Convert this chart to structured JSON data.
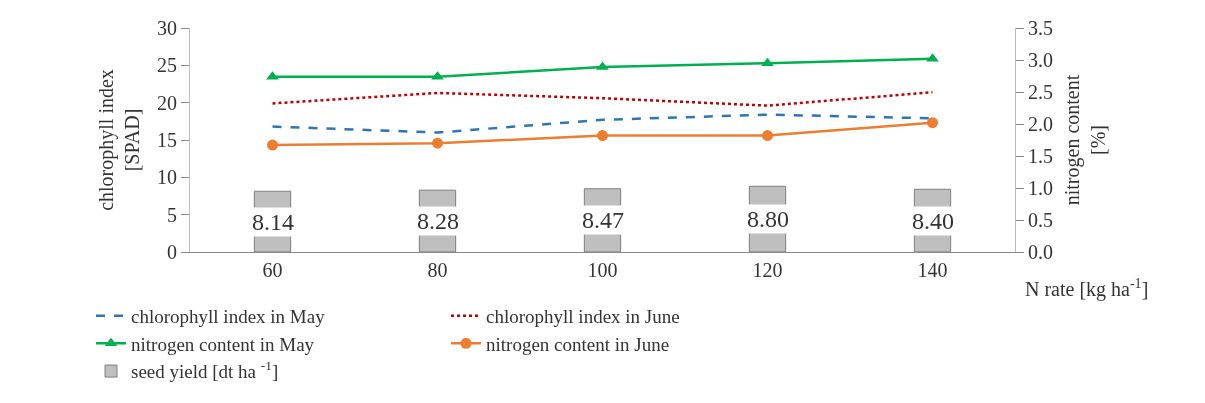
{
  "chart_data": {
    "type": "line",
    "xlabel": "N rate [kg ha$^{-1}$]",
    "ylabel": "chlorophyll index [SPAD]",
    "y2label": "nitrogen content [%]",
    "categories": [
      "60",
      "80",
      "100",
      "120",
      "140"
    ],
    "ylim": [
      0,
      30
    ],
    "yticks": [
      0,
      5,
      10,
      15,
      20,
      25,
      30
    ],
    "y2lim": [
      0,
      3.5
    ],
    "y2ticks": [
      {
        "value": 0,
        "label": "0.0"
      },
      0.5,
      {
        "value": 1,
        "label": "1.0"
      },
      1.5,
      {
        "value": 2,
        "label": "2.0"
      },
      2.5,
      {
        "value": 3,
        "label": "3.0"
      },
      3.5
    ],
    "grid": false,
    "legend": "bottom",
    "series": [
      {
        "name": "seed yield [dt ha $^{-1}$]",
        "type": "bar",
        "color": "#bfbfbf",
        "values": [
          8.14,
          8.28,
          8.47,
          8.8,
          8.4
        ],
        "value_labels": [
          "8.14",
          "8.28",
          "8.47",
          "8.80",
          "8.40"
        ]
      },
      {
        "name": "chlorophyll index in May",
        "color": "#2e75b6",
        "line_style": "dashed",
        "marker": "none",
        "values": [
          16.8,
          16.0,
          17.7,
          18.4,
          17.9
        ]
      },
      {
        "name": "chlorophyll index in June",
        "color": "#c00000",
        "line_style": "dotted",
        "marker": "none",
        "values": [
          19.9,
          21.3,
          20.6,
          19.6,
          21.4
        ]
      },
      {
        "name": "nitrogen content in May",
        "color": "#00b050",
        "line_style": "solid",
        "marker": "triangle",
        "axis": "y2",
        "values": [
          2.74,
          2.74,
          2.89,
          2.95,
          3.02
        ]
      },
      {
        "name": "nitrogen content in June",
        "color": "#ed7d31",
        "line_style": "solid",
        "marker": "circle",
        "axis": "y2",
        "values": [
          1.67,
          1.7,
          1.82,
          1.82,
          2.02
        ]
      }
    ]
  }
}
